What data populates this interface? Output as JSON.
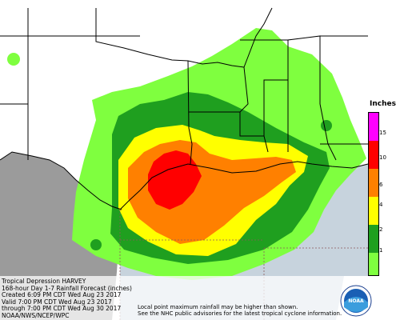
{
  "legend": {
    "title": "Inches",
    "ticks": [
      "15",
      "10",
      "6",
      "4",
      "2",
      "1"
    ],
    "colors": {
      "bin_1_2": "#7fff3f",
      "bin_2_4": "#1f9f1f",
      "bin_4_6": "#ffff00",
      "bin_6_10": "#ff8000",
      "bin_10_15": "#ff0000",
      "bin_15_plus": "#ff00ff",
      "below_1": "#ffffff"
    }
  },
  "caption": {
    "line1": "Tropical Depression HARVEY",
    "line2": "168-hour Day 1-7 Rainfall Forecast (inches)",
    "line3": "Created 6:09 PM CDT Wed Aug 23 2017",
    "line4": "Valid 7:00 PM CDT Wed Aug 23 2017",
    "line5": "through 7:00 PM CDT Wed Aug 30 2017",
    "line6": "NOAA/NWS/NCEP/WPC"
  },
  "note": {
    "line1": "Local point maximum rainfall may be higher than shown.",
    "line2": "See the NHC public advisories for the latest tropical cyclone information."
  },
  "logo": {
    "text": "NOAA"
  },
  "colors": {
    "land": "#ffffff",
    "mexico": "#9b9b9b",
    "gulf": "#c7d3dd",
    "borders": "#000000",
    "dashed_lines": "#8b5a5a"
  }
}
